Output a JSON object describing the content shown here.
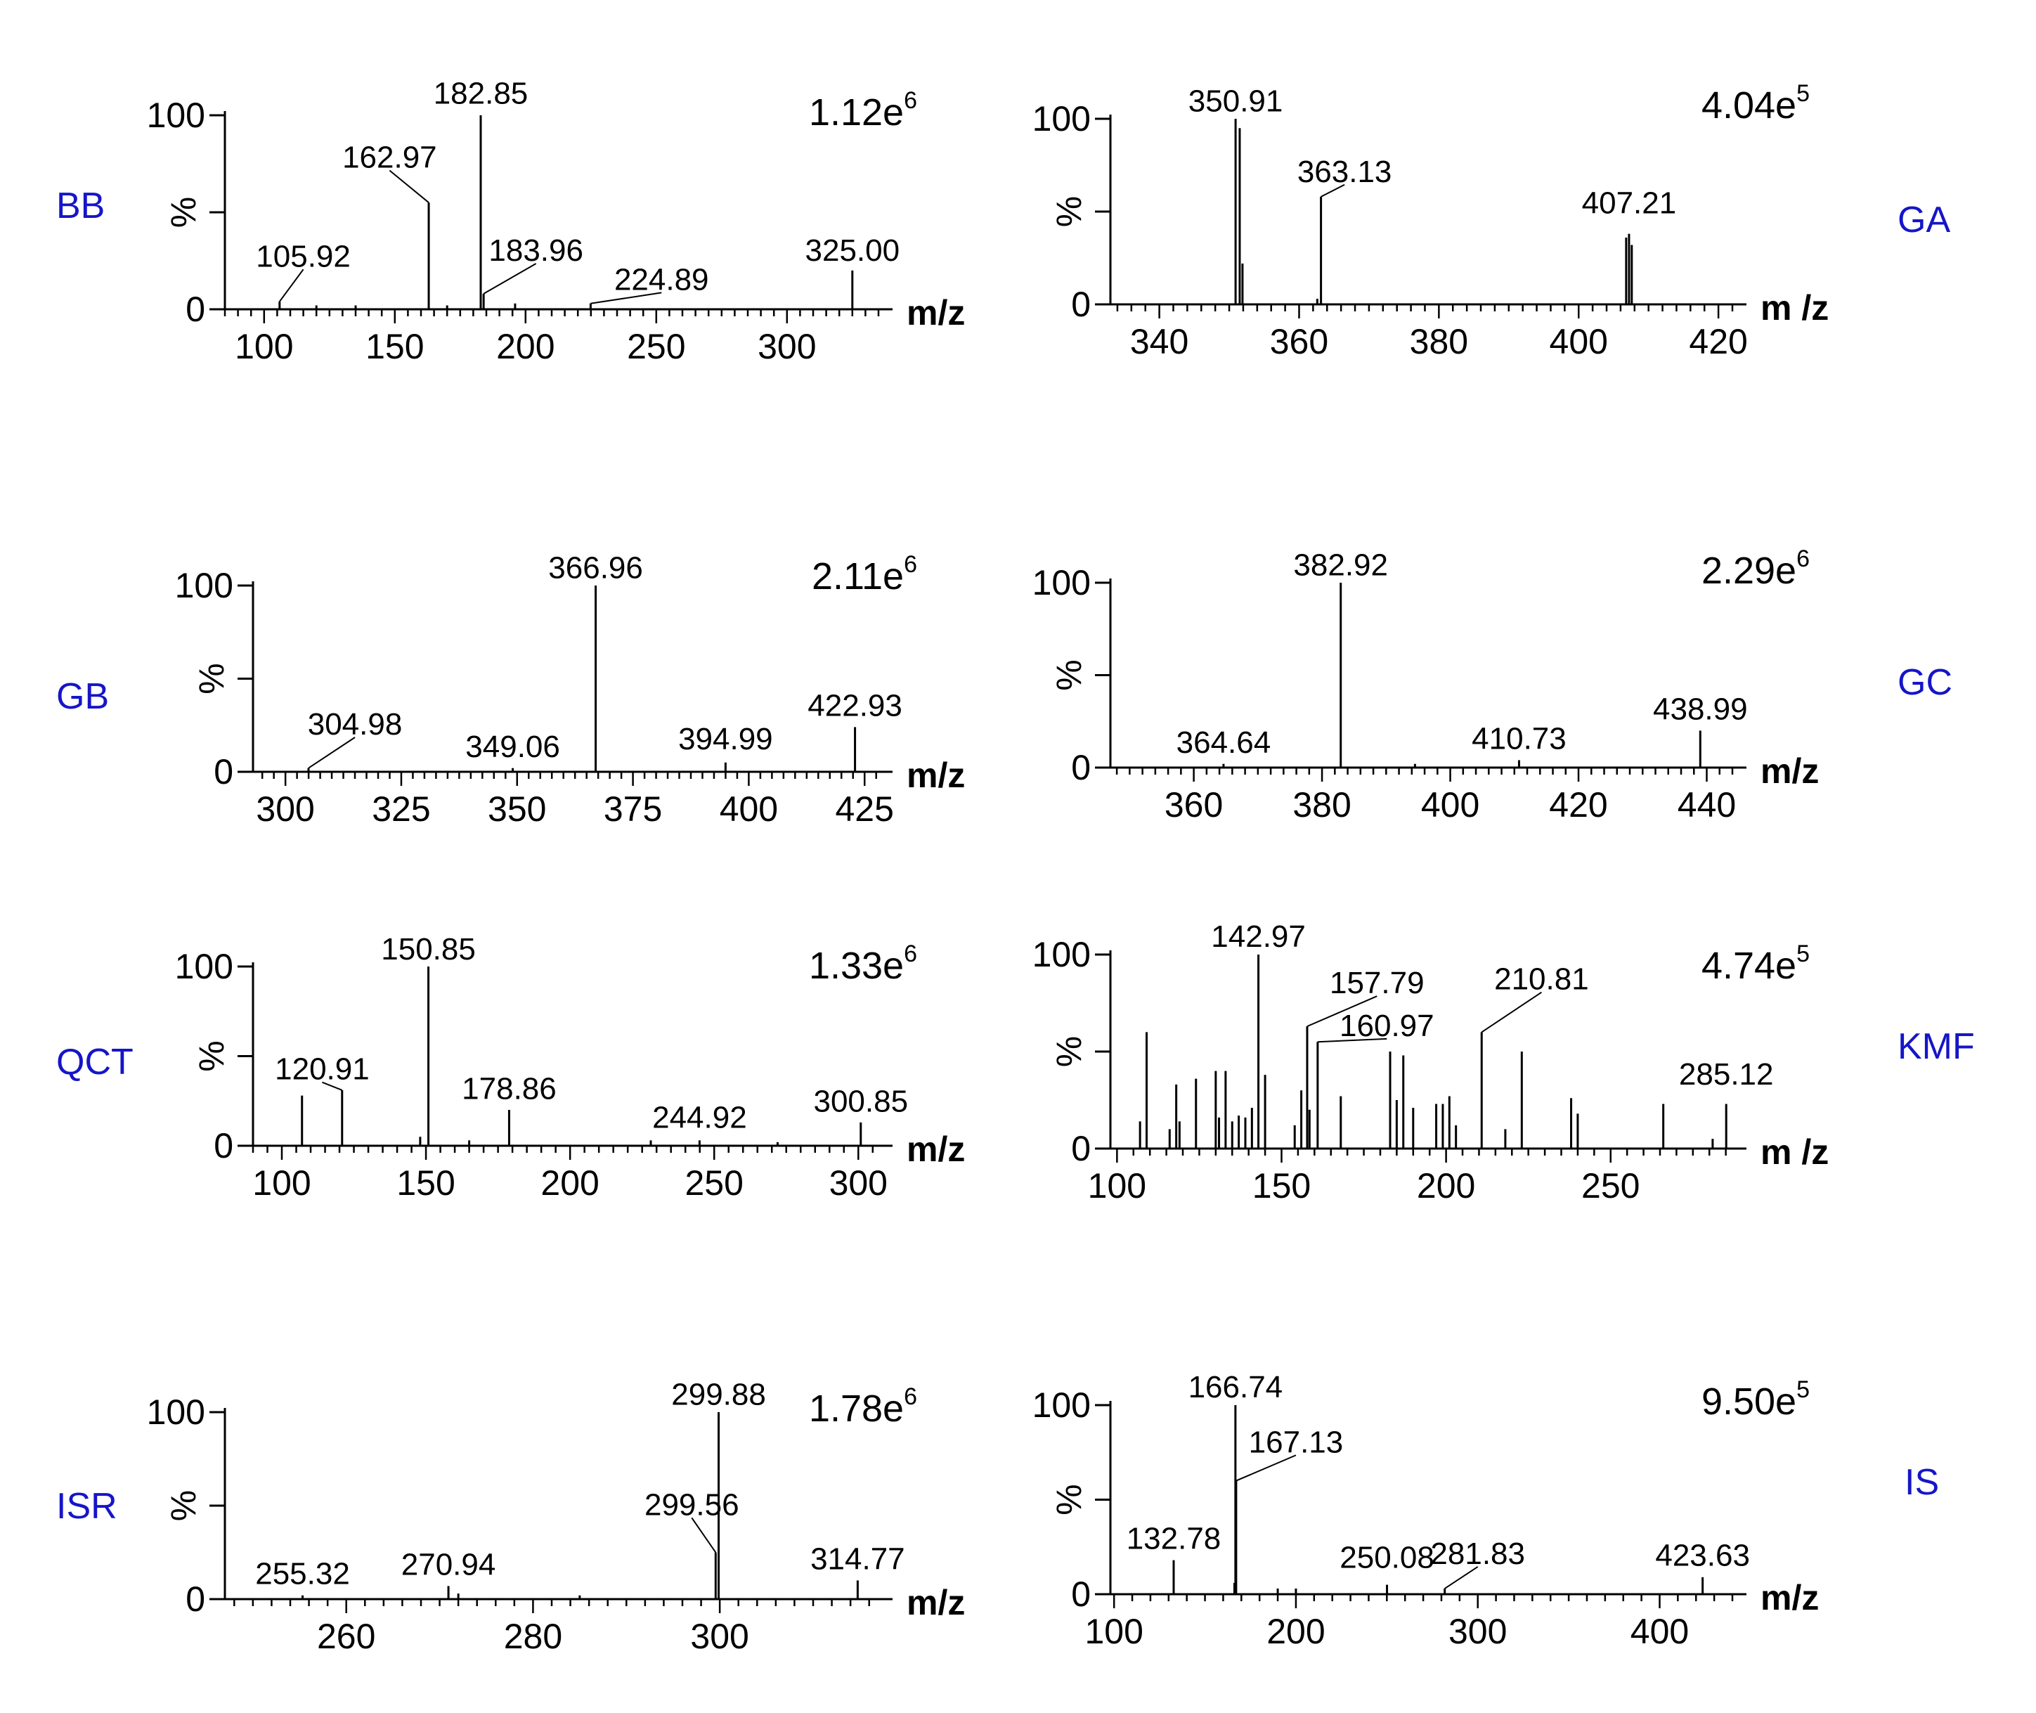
{
  "colors": {
    "axis": "#000000",
    "peak": "#000000",
    "sample_label": "#1515c8"
  },
  "chart_data": [
    {
      "type": "bar",
      "sample": "BB",
      "intensity": "1.12e",
      "intensity_exp": "6",
      "xlabel": "m/z",
      "ylabel": "%",
      "xlim": [
        85,
        335
      ],
      "ylim": [
        0,
        100
      ],
      "xticks": [
        100,
        150,
        200,
        250,
        300
      ],
      "yticks": [
        0,
        100
      ],
      "peaks": [
        {
          "mz": 105.92,
          "rel": 4
        },
        {
          "mz": 120,
          "rel": 2
        },
        {
          "mz": 135,
          "rel": 2
        },
        {
          "mz": 162.97,
          "rel": 55
        },
        {
          "mz": 170,
          "rel": 2
        },
        {
          "mz": 182.85,
          "rel": 100
        },
        {
          "mz": 183.96,
          "rel": 8
        },
        {
          "mz": 196,
          "rel": 3
        },
        {
          "mz": 224.89,
          "rel": 3
        },
        {
          "mz": 325.0,
          "rel": 20
        }
      ],
      "labels": [
        {
          "text": "105.92",
          "mz": 105.92,
          "rel": 4,
          "tx": 115,
          "ty": 22
        },
        {
          "text": "162.97",
          "mz": 162.97,
          "rel": 55,
          "tx": 148,
          "ty": 73
        },
        {
          "text": "182.85",
          "mz": 182.85,
          "rel": 100,
          "tx": 182.85,
          "ty": 106
        },
        {
          "text": "183.96",
          "mz": 183.96,
          "rel": 8,
          "tx": 204,
          "ty": 25
        },
        {
          "text": "224.89",
          "mz": 224.89,
          "rel": 3,
          "tx": 252,
          "ty": 10
        },
        {
          "text": "325.00",
          "mz": 325.0,
          "rel": 20,
          "tx": 325.0,
          "ty": 25
        }
      ]
    },
    {
      "type": "bar",
      "sample": "GA",
      "intensity": "4.04e",
      "intensity_exp": "5",
      "xlabel": "m /z",
      "ylabel": "%",
      "xlim": [
        333,
        422
      ],
      "ylim": [
        0,
        100
      ],
      "xticks": [
        340,
        360,
        380,
        400,
        420
      ],
      "yticks": [
        0,
        100
      ],
      "peaks": [
        {
          "mz": 350.91,
          "rel": 100
        },
        {
          "mz": 351.5,
          "rel": 95
        },
        {
          "mz": 351.9,
          "rel": 22
        },
        {
          "mz": 363.13,
          "rel": 58
        },
        {
          "mz": 362.6,
          "rel": 3
        },
        {
          "mz": 406.8,
          "rel": 36
        },
        {
          "mz": 407.21,
          "rel": 38
        },
        {
          "mz": 407.6,
          "rel": 32
        }
      ],
      "labels": [
        {
          "text": "350.91",
          "mz": 350.91,
          "rel": 100,
          "tx": 350.91,
          "ty": 104
        },
        {
          "text": "363.13",
          "mz": 363.13,
          "rel": 58,
          "tx": 366.5,
          "ty": 66
        },
        {
          "text": "407.21",
          "mz": 407.21,
          "rel": 38,
          "tx": 407.21,
          "ty": 49
        }
      ]
    },
    {
      "type": "bar",
      "sample": "GB",
      "intensity": "2.11e",
      "intensity_exp": "6",
      "xlabel": "m/z",
      "ylabel": "%",
      "xlim": [
        293,
        428
      ],
      "ylim": [
        0,
        100
      ],
      "xticks": [
        300,
        325,
        350,
        375,
        400,
        425
      ],
      "yticks": [
        0,
        100
      ],
      "peaks": [
        {
          "mz": 304.98,
          "rel": 2
        },
        {
          "mz": 349.06,
          "rel": 2
        },
        {
          "mz": 366.96,
          "rel": 100
        },
        {
          "mz": 394.99,
          "rel": 5
        },
        {
          "mz": 422.93,
          "rel": 24
        }
      ],
      "labels": [
        {
          "text": "304.98",
          "mz": 304.98,
          "rel": 2,
          "tx": 315,
          "ty": 20
        },
        {
          "text": "349.06",
          "mz": 349.06,
          "rel": 2,
          "tx": 349.06,
          "ty": 8
        },
        {
          "text": "366.96",
          "mz": 366.96,
          "rel": 100,
          "tx": 366.96,
          "ty": 104
        },
        {
          "text": "394.99",
          "mz": 394.99,
          "rel": 5,
          "tx": 394.99,
          "ty": 12
        },
        {
          "text": "422.93",
          "mz": 422.93,
          "rel": 24,
          "tx": 422.93,
          "ty": 30
        }
      ]
    },
    {
      "type": "bar",
      "sample": "GC",
      "intensity": "2.29e",
      "intensity_exp": "6",
      "xlabel": "m/z",
      "ylabel": "%",
      "xlim": [
        347,
        444
      ],
      "ylim": [
        0,
        100
      ],
      "xticks": [
        360,
        380,
        400,
        420,
        440
      ],
      "yticks": [
        0,
        100
      ],
      "peaks": [
        {
          "mz": 364.64,
          "rel": 2
        },
        {
          "mz": 382.92,
          "rel": 100
        },
        {
          "mz": 394.5,
          "rel": 2
        },
        {
          "mz": 410.73,
          "rel": 4
        },
        {
          "mz": 438.99,
          "rel": 20
        }
      ],
      "labels": [
        {
          "text": "364.64",
          "mz": 364.64,
          "rel": 2,
          "tx": 364.64,
          "ty": 8
        },
        {
          "text": "382.92",
          "mz": 382.92,
          "rel": 100,
          "tx": 382.92,
          "ty": 104
        },
        {
          "text": "410.73",
          "mz": 410.73,
          "rel": 4,
          "tx": 410.73,
          "ty": 10
        },
        {
          "text": "438.99",
          "mz": 438.99,
          "rel": 20,
          "tx": 438.99,
          "ty": 26
        }
      ]
    },
    {
      "type": "bar",
      "sample": "QCT",
      "intensity": "1.33e",
      "intensity_exp": "6",
      "xlabel": "m/z",
      "ylabel": "%",
      "xlim": [
        90,
        307
      ],
      "ylim": [
        0,
        100
      ],
      "xticks": [
        100,
        150,
        200,
        250,
        300
      ],
      "yticks": [
        0,
        100
      ],
      "peaks": [
        {
          "mz": 107,
          "rel": 28
        },
        {
          "mz": 120.91,
          "rel": 31
        },
        {
          "mz": 148,
          "rel": 5
        },
        {
          "mz": 150.85,
          "rel": 100
        },
        {
          "mz": 165,
          "rel": 3
        },
        {
          "mz": 178.86,
          "rel": 20
        },
        {
          "mz": 228,
          "rel": 3
        },
        {
          "mz": 244.92,
          "rel": 3
        },
        {
          "mz": 272,
          "rel": 2
        },
        {
          "mz": 300.85,
          "rel": 13
        }
      ],
      "labels": [
        {
          "text": "120.91",
          "mz": 120.91,
          "rel": 31,
          "tx": 114,
          "ty": 37
        },
        {
          "text": "150.85",
          "mz": 150.85,
          "rel": 100,
          "tx": 150.85,
          "ty": 104
        },
        {
          "text": "178.86",
          "mz": 178.86,
          "rel": 20,
          "tx": 178.86,
          "ty": 26
        },
        {
          "text": "244.92",
          "mz": 244.92,
          "rel": 3,
          "tx": 244.92,
          "ty": 10
        },
        {
          "text": "300.85",
          "mz": 300.85,
          "rel": 13,
          "tx": 300.85,
          "ty": 19
        }
      ]
    },
    {
      "type": "bar",
      "sample": "KMF",
      "intensity": "4.74e",
      "intensity_exp": "5",
      "xlabel": "m /z",
      "ylabel": "%",
      "xlim": [
        98,
        287
      ],
      "ylim": [
        0,
        100
      ],
      "xticks": [
        100,
        150,
        200,
        250
      ],
      "yticks": [
        0,
        100
      ],
      "peaks": [
        {
          "mz": 107,
          "rel": 14
        },
        {
          "mz": 109,
          "rel": 60
        },
        {
          "mz": 116,
          "rel": 10
        },
        {
          "mz": 118,
          "rel": 33
        },
        {
          "mz": 119,
          "rel": 14
        },
        {
          "mz": 124,
          "rel": 36
        },
        {
          "mz": 130,
          "rel": 40
        },
        {
          "mz": 131,
          "rel": 16
        },
        {
          "mz": 133,
          "rel": 40
        },
        {
          "mz": 135,
          "rel": 14
        },
        {
          "mz": 137,
          "rel": 17
        },
        {
          "mz": 139,
          "rel": 16
        },
        {
          "mz": 141,
          "rel": 21
        },
        {
          "mz": 142.97,
          "rel": 100
        },
        {
          "mz": 145,
          "rel": 38
        },
        {
          "mz": 154,
          "rel": 12
        },
        {
          "mz": 156,
          "rel": 30
        },
        {
          "mz": 157.79,
          "rel": 63
        },
        {
          "mz": 158.5,
          "rel": 20
        },
        {
          "mz": 160.97,
          "rel": 55
        },
        {
          "mz": 168,
          "rel": 27
        },
        {
          "mz": 183,
          "rel": 50
        },
        {
          "mz": 185,
          "rel": 25
        },
        {
          "mz": 187,
          "rel": 48
        },
        {
          "mz": 190,
          "rel": 21
        },
        {
          "mz": 197,
          "rel": 23
        },
        {
          "mz": 199,
          "rel": 23
        },
        {
          "mz": 201,
          "rel": 27
        },
        {
          "mz": 203,
          "rel": 12
        },
        {
          "mz": 210.81,
          "rel": 60
        },
        {
          "mz": 218,
          "rel": 10
        },
        {
          "mz": 223,
          "rel": 50
        },
        {
          "mz": 238,
          "rel": 26
        },
        {
          "mz": 240,
          "rel": 18
        },
        {
          "mz": 266,
          "rel": 23
        },
        {
          "mz": 281,
          "rel": 5
        },
        {
          "mz": 285.12,
          "rel": 23
        }
      ],
      "labels": [
        {
          "text": "142.97",
          "mz": 142.97,
          "rel": 100,
          "tx": 142.97,
          "ty": 104
        },
        {
          "text": "157.79",
          "mz": 157.79,
          "rel": 63,
          "tx": 179,
          "ty": 80
        },
        {
          "text": "160.97",
          "mz": 160.97,
          "rel": 55,
          "tx": 182,
          "ty": 58
        },
        {
          "text": "210.81",
          "mz": 210.81,
          "rel": 60,
          "tx": 229,
          "ty": 82
        },
        {
          "text": "285.12",
          "mz": 285.12,
          "rel": 23,
          "tx": 285.12,
          "ty": 33
        }
      ]
    },
    {
      "type": "bar",
      "sample": "ISR",
      "intensity": "1.78e",
      "intensity_exp": "6",
      "xlabel": "m/z",
      "ylabel": "%",
      "xlim": [
        247,
        317
      ],
      "ylim": [
        0,
        100
      ],
      "xticks": [
        260,
        280,
        300
      ],
      "yticks": [
        0,
        100
      ],
      "peaks": [
        {
          "mz": 255.32,
          "rel": 2
        },
        {
          "mz": 270.94,
          "rel": 7
        },
        {
          "mz": 272,
          "rel": 3
        },
        {
          "mz": 285,
          "rel": 2
        },
        {
          "mz": 299.56,
          "rel": 25
        },
        {
          "mz": 299.88,
          "rel": 100
        },
        {
          "mz": 314.77,
          "rel": 10
        }
      ],
      "labels": [
        {
          "text": "255.32",
          "mz": 255.32,
          "rel": 2,
          "tx": 255.32,
          "ty": 8
        },
        {
          "text": "270.94",
          "mz": 270.94,
          "rel": 7,
          "tx": 270.94,
          "ty": 13
        },
        {
          "text": "299.56",
          "mz": 299.56,
          "rel": 25,
          "tx": 297,
          "ty": 45
        },
        {
          "text": "299.88",
          "mz": 299.88,
          "rel": 100,
          "tx": 299.88,
          "ty": 104
        },
        {
          "text": "314.77",
          "mz": 314.77,
          "rel": 10,
          "tx": 314.77,
          "ty": 16
        }
      ]
    },
    {
      "type": "bar",
      "sample": "IS",
      "intensity": "9.50e",
      "intensity_exp": "5",
      "xlabel": "m/z",
      "ylabel": "%",
      "xlim": [
        98,
        440
      ],
      "ylim": [
        0,
        100
      ],
      "xticks": [
        100,
        200,
        300,
        400
      ],
      "yticks": [
        0,
        100
      ],
      "peaks": [
        {
          "mz": 132.78,
          "rel": 18
        },
        {
          "mz": 166.2,
          "rel": 6
        },
        {
          "mz": 166.74,
          "rel": 100
        },
        {
          "mz": 167.13,
          "rel": 60
        },
        {
          "mz": 190,
          "rel": 3
        },
        {
          "mz": 200,
          "rel": 3
        },
        {
          "mz": 250.08,
          "rel": 5
        },
        {
          "mz": 281.83,
          "rel": 3
        },
        {
          "mz": 423.63,
          "rel": 9
        }
      ],
      "labels": [
        {
          "text": "132.78",
          "mz": 132.78,
          "rel": 18,
          "tx": 132.78,
          "ty": 24
        },
        {
          "text": "166.74",
          "mz": 166.74,
          "rel": 100,
          "tx": 166.74,
          "ty": 104
        },
        {
          "text": "167.13",
          "mz": 167.13,
          "rel": 60,
          "tx": 200,
          "ty": 75
        },
        {
          "text": "250.08",
          "mz": 250.08,
          "rel": 5,
          "tx": 250.08,
          "ty": 14
        },
        {
          "text": "281.83",
          "mz": 281.83,
          "rel": 3,
          "tx": 300,
          "ty": 16
        },
        {
          "text": "423.63",
          "mz": 423.63,
          "rel": 9,
          "tx": 423.63,
          "ty": 15
        }
      ]
    }
  ]
}
